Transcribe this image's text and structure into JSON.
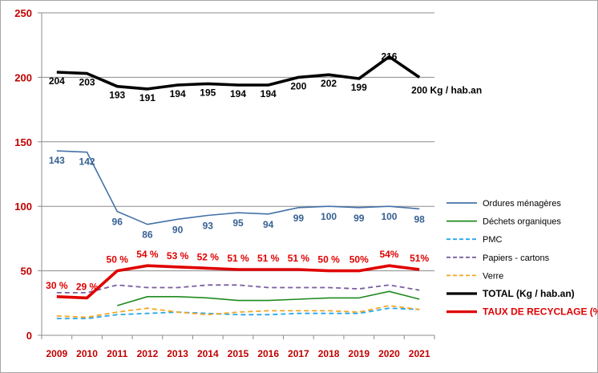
{
  "chart_data": {
    "type": "line",
    "title": "",
    "xlabel": "",
    "ylabel": "",
    "ylim": [
      0,
      250
    ],
    "yticks": [
      0,
      50,
      100,
      150,
      200,
      250
    ],
    "categories": [
      "2009",
      "2010",
      "2011",
      "2012",
      "2013",
      "2014",
      "2015",
      "2016",
      "2017",
      "2018",
      "2019",
      "2020",
      "2021"
    ],
    "series": [
      {
        "id": "om",
        "name": "Ordures ménagères",
        "color": "#4472a8",
        "dash": false,
        "width": 1.6,
        "values": [
          143,
          142,
          96,
          86,
          90,
          93,
          95,
          94,
          99,
          100,
          99,
          100,
          98
        ],
        "labels": [
          "143",
          "142",
          "96",
          "86",
          "90",
          "93",
          "95",
          "94",
          "99",
          "100",
          "99",
          "100",
          "98"
        ],
        "label_color": "#376092"
      },
      {
        "id": "do",
        "name": "Déchets organiques",
        "color": "#1f8a1f",
        "dash": false,
        "width": 1.6,
        "values": [
          null,
          null,
          23,
          30,
          30,
          29,
          27,
          27,
          28,
          29,
          29,
          34,
          28
        ]
      },
      {
        "id": "pmc",
        "name": "PMC",
        "color": "#2aa7e8",
        "dash": true,
        "width": 1.8,
        "values": [
          13,
          13,
          16,
          17,
          18,
          17,
          16,
          16,
          17,
          17,
          17,
          21,
          20
        ]
      },
      {
        "id": "pap",
        "name": "Papiers - cartons",
        "color": "#7a5fa0",
        "dash": true,
        "width": 1.8,
        "values": [
          33,
          33,
          39,
          37,
          37,
          39,
          39,
          37,
          37,
          37,
          36,
          39,
          35
        ]
      },
      {
        "id": "verre",
        "name": "Verre",
        "color": "#f5a623",
        "dash": true,
        "width": 1.8,
        "values": [
          15,
          14,
          18,
          21,
          18,
          16,
          18,
          19,
          19,
          19,
          18,
          23,
          20
        ]
      },
      {
        "id": "total",
        "name": "TOTAL  (Kg / hab.an)",
        "color": "#000000",
        "dash": false,
        "width": 3.6,
        "values": [
          204,
          203,
          193,
          191,
          194,
          195,
          194,
          194,
          200,
          202,
          199,
          216,
          200
        ],
        "labels": [
          "204",
          "203",
          "193",
          "191",
          "194",
          "195",
          "194",
          "194",
          "200",
          "202",
          "199",
          "216",
          "200 Kg / hab.an"
        ],
        "label_color": "#000000"
      },
      {
        "id": "taux",
        "name": "TAUX DE RECYCLAGE (%)",
        "color": "#e00000",
        "dash": false,
        "width": 3.6,
        "values": [
          30,
          29,
          50,
          54,
          53,
          52,
          51,
          51,
          51,
          50,
          50,
          54,
          51
        ],
        "labels": [
          "30 %",
          "29 %",
          "50 %",
          "54 %",
          "53 %",
          "52 %",
          "51 %",
          "51 %",
          "51 %",
          "50 %",
          "50%",
          "54%",
          "51%"
        ],
        "label_color": "#e00000"
      }
    ],
    "legend_position": "right",
    "grid": true
  }
}
